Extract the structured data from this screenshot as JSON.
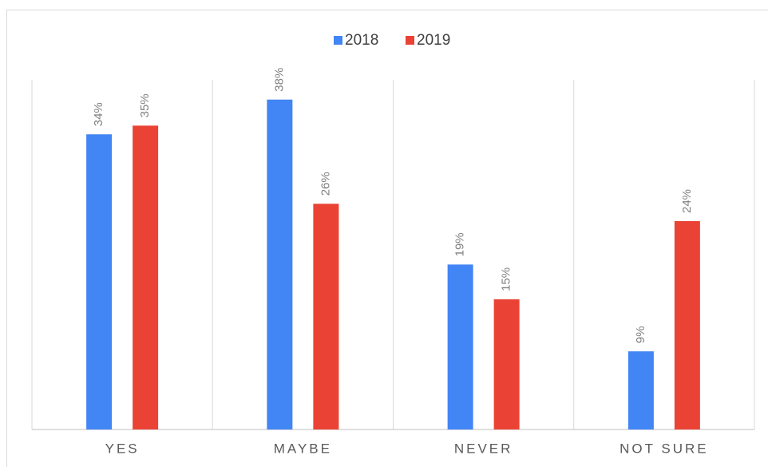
{
  "chart_data": {
    "type": "bar",
    "categories": [
      "YES",
      "MAYBE",
      "NEVER",
      "NOT SURE"
    ],
    "series": [
      {
        "name": "2018",
        "color": "#4285f4",
        "values": [
          34,
          38,
          19,
          9
        ],
        "value_labels": [
          "34%",
          "38%",
          "19%",
          "9%"
        ]
      },
      {
        "name": "2019",
        "color": "#ea4335",
        "values": [
          35,
          26,
          15,
          24
        ],
        "value_labels": [
          "35%",
          "26%",
          "15%",
          "24%"
        ]
      }
    ],
    "ylim": [
      0,
      40
    ],
    "legend": "top"
  }
}
